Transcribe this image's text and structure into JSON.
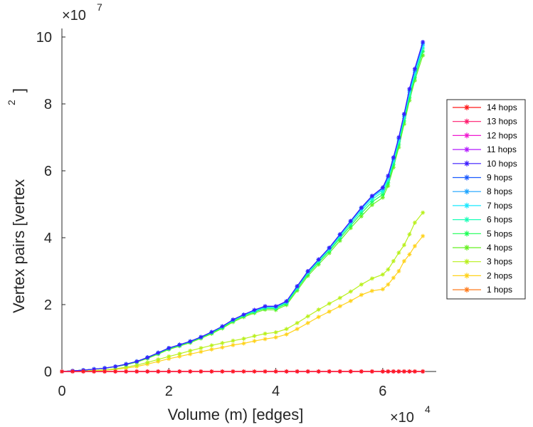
{
  "chart_data": {
    "type": "line",
    "title": "",
    "xlabel": "Volume (m) [edges]",
    "ylabel": "Vertex pairs [vertex",
    "ylabel_superscript": "2",
    "ylabel_close": "]",
    "x_exponent_prefix": "×10",
    "x_exponent_power": "4",
    "y_exponent_prefix": "×10",
    "y_exponent_power": "7",
    "xlim": [
      0,
      70000
    ],
    "ylim": [
      0,
      100000000
    ],
    "xticks": [
      0,
      20000,
      40000,
      60000
    ],
    "xtick_labels": [
      "0",
      "2",
      "4",
      "6"
    ],
    "yticks": [
      0,
      20000000,
      40000000,
      60000000,
      80000000,
      100000000
    ],
    "ytick_labels": [
      "0",
      "2",
      "4",
      "6",
      "8",
      "10"
    ],
    "grid": false,
    "legend_position": "right",
    "x": [
      0,
      2000,
      4000,
      6000,
      8000,
      10000,
      12000,
      14000,
      16000,
      18000,
      20000,
      22000,
      24000,
      26000,
      28000,
      30000,
      32000,
      34000,
      36000,
      38000,
      40000,
      42000,
      44000,
      46000,
      48000,
      50000,
      52000,
      54000,
      56000,
      58000,
      60000,
      61000,
      62000,
      63000,
      64000,
      65000,
      66000,
      67500
    ],
    "series": [
      {
        "name": "14 hops",
        "color": "#ff1a1a",
        "values": [
          0,
          0,
          0,
          0,
          0,
          0,
          0,
          0,
          0,
          0,
          0,
          0,
          0,
          0,
          0,
          0,
          0,
          0,
          0,
          0,
          0,
          0,
          0,
          0,
          0,
          0,
          0,
          0,
          0,
          0,
          0,
          0,
          0,
          0,
          0,
          0,
          0,
          0
        ]
      },
      {
        "name": "13 hops",
        "color": "#ff1a6e",
        "values": [
          0,
          0,
          0,
          0,
          0,
          0,
          0,
          0,
          0,
          0,
          0,
          0,
          0,
          0,
          0,
          0,
          0,
          0,
          0,
          0,
          0,
          0,
          0,
          0,
          0,
          0,
          0,
          0,
          0,
          0,
          0,
          0,
          0,
          0,
          0,
          0,
          0,
          0
        ]
      },
      {
        "name": "12 hops",
        "color": "#f01ad0",
        "values": [
          0,
          0,
          0,
          0,
          0,
          0,
          0,
          0,
          0,
          0,
          0,
          0,
          0,
          0,
          0,
          0,
          0,
          0,
          0,
          0,
          0,
          0,
          0,
          0,
          0,
          0,
          0,
          0,
          0,
          0,
          0,
          0,
          0,
          0,
          0,
          0,
          0,
          0
        ]
      },
      {
        "name": "11 hops",
        "color": "#b31aff",
        "values": [
          0,
          0,
          0,
          0,
          0,
          0,
          0,
          0,
          0,
          0,
          0,
          0,
          0,
          0,
          0,
          0,
          0,
          0,
          0,
          0,
          0,
          0,
          0,
          0,
          0,
          0,
          0,
          0,
          0,
          0,
          0,
          0,
          0,
          0,
          0,
          0,
          0,
          0
        ]
      },
      {
        "name": "10 hops",
        "color": "#3a1aff",
        "values": [
          0,
          200000,
          400000,
          700000,
          1000000,
          1500000,
          2200000,
          3000000,
          4200000,
          5600000,
          7000000,
          8000000,
          9000000,
          10300000,
          11800000,
          13500000,
          15500000,
          17000000,
          18400000,
          19500000,
          19500000,
          21000000,
          25500000,
          30000000,
          33500000,
          37000000,
          41000000,
          45000000,
          49000000,
          52500000,
          55000000,
          58500000,
          64000000,
          70000000,
          77000000,
          84500000,
          90500000,
          98500000
        ]
      },
      {
        "name": "9 hops",
        "color": "#1a5aff",
        "values": [
          0,
          200000,
          400000,
          700000,
          1000000,
          1500000,
          2200000,
          3000000,
          4200000,
          5600000,
          7000000,
          8000000,
          9000000,
          10300000,
          11800000,
          13500000,
          15500000,
          17000000,
          18400000,
          19500000,
          19500000,
          21000000,
          25500000,
          30000000,
          33500000,
          37000000,
          41000000,
          45000000,
          49000000,
          52500000,
          55000000,
          58500000,
          64000000,
          70000000,
          77000000,
          84500000,
          90500000,
          98500000
        ]
      },
      {
        "name": "8 hops",
        "color": "#1aa3ff",
        "values": [
          0,
          200000,
          400000,
          700000,
          1000000,
          1500000,
          2200000,
          3000000,
          4200000,
          5600000,
          7000000,
          8000000,
          9000000,
          10300000,
          11800000,
          13500000,
          15500000,
          17000000,
          18300000,
          19400000,
          19400000,
          20900000,
          25400000,
          29900000,
          33400000,
          36900000,
          40900000,
          44900000,
          48800000,
          52300000,
          54700000,
          58200000,
          63700000,
          69700000,
          76700000,
          84000000,
          90000000,
          98000000
        ]
      },
      {
        "name": "7 hops",
        "color": "#1ae8ff",
        "values": [
          0,
          200000,
          400000,
          700000,
          1000000,
          1500000,
          2200000,
          3000000,
          4200000,
          5600000,
          7000000,
          8000000,
          9000000,
          10300000,
          11800000,
          13500000,
          15400000,
          16900000,
          18200000,
          19300000,
          19300000,
          20800000,
          25300000,
          29800000,
          33300000,
          36800000,
          40700000,
          44700000,
          48500000,
          52000000,
          54300000,
          57800000,
          63300000,
          69300000,
          76300000,
          83500000,
          89500000,
          97500000
        ]
      },
      {
        "name": "6 hops",
        "color": "#1affb8",
        "values": [
          0,
          200000,
          400000,
          700000,
          1000000,
          1500000,
          2200000,
          3000000,
          4200000,
          5500000,
          6900000,
          7900000,
          8900000,
          10200000,
          11700000,
          13300000,
          15300000,
          16800000,
          18000000,
          19100000,
          19100000,
          20600000,
          25000000,
          29500000,
          33000000,
          36400000,
          40300000,
          44200000,
          48000000,
          51400000,
          53700000,
          57200000,
          62700000,
          68700000,
          75700000,
          82700000,
          88700000,
          96700000
        ]
      },
      {
        "name": "5 hops",
        "color": "#1aff55",
        "values": [
          0,
          200000,
          400000,
          700000,
          1000000,
          1500000,
          2100000,
          2900000,
          4100000,
          5400000,
          6800000,
          7800000,
          8800000,
          10100000,
          11500000,
          13100000,
          15100000,
          16600000,
          17800000,
          18900000,
          18800000,
          20300000,
          24700000,
          29100000,
          32600000,
          36000000,
          39800000,
          43600000,
          47300000,
          50700000,
          52900000,
          56400000,
          61900000,
          67900000,
          74900000,
          81900000,
          87900000,
          95700000
        ]
      },
      {
        "name": "4 hops",
        "color": "#66f020",
        "values": [
          0,
          200000,
          400000,
          700000,
          1000000,
          1400000,
          2000000,
          2800000,
          3900000,
          5200000,
          6600000,
          7600000,
          8600000,
          9900000,
          11300000,
          12900000,
          14800000,
          16300000,
          17500000,
          18500000,
          18400000,
          19900000,
          24200000,
          28600000,
          32000000,
          35400000,
          39100000,
          42900000,
          46400000,
          49800000,
          52000000,
          55500000,
          61000000,
          67000000,
          74000000,
          81000000,
          87000000,
          94500000
        ]
      },
      {
        "name": "3 hops",
        "color": "#b8f01a",
        "values": [
          0,
          100000,
          200000,
          300000,
          500000,
          800000,
          1300000,
          1900000,
          2700000,
          3600000,
          4500000,
          5300000,
          6200000,
          7000000,
          7800000,
          8500000,
          9200000,
          9800000,
          10600000,
          11300000,
          11700000,
          12700000,
          14500000,
          16500000,
          18500000,
          20300000,
          22000000,
          23900000,
          26000000,
          27800000,
          29000000,
          30500000,
          33000000,
          35500000,
          37800000,
          41000000,
          44500000,
          47500000
        ]
      },
      {
        "name": "2 hops",
        "color": "#ffd21a",
        "values": [
          0,
          100000,
          200000,
          300000,
          400000,
          600000,
          1000000,
          1500000,
          2200000,
          3000000,
          3800000,
          4500000,
          5200000,
          5900000,
          6600000,
          7200000,
          7900000,
          8400000,
          9100000,
          9700000,
          10200000,
          11100000,
          12700000,
          14500000,
          16300000,
          17900000,
          19500000,
          21100000,
          22900000,
          24100000,
          24600000,
          26000000,
          28000000,
          30000000,
          33000000,
          35000000,
          37500000,
          40500000
        ]
      },
      {
        "name": "1 hops",
        "color": "#ff7a1a",
        "values": [
          0,
          2000,
          4000,
          6000,
          8000,
          10000,
          12000,
          14000,
          16000,
          18000,
          20000,
          22000,
          24000,
          26000,
          28000,
          30000,
          32000,
          34000,
          36000,
          38000,
          40000,
          42000,
          44000,
          46000,
          48000,
          50000,
          52000,
          54000,
          56000,
          58000,
          60000,
          61000,
          62000,
          63000,
          64000,
          65000,
          66000,
          67500
        ]
      }
    ]
  }
}
